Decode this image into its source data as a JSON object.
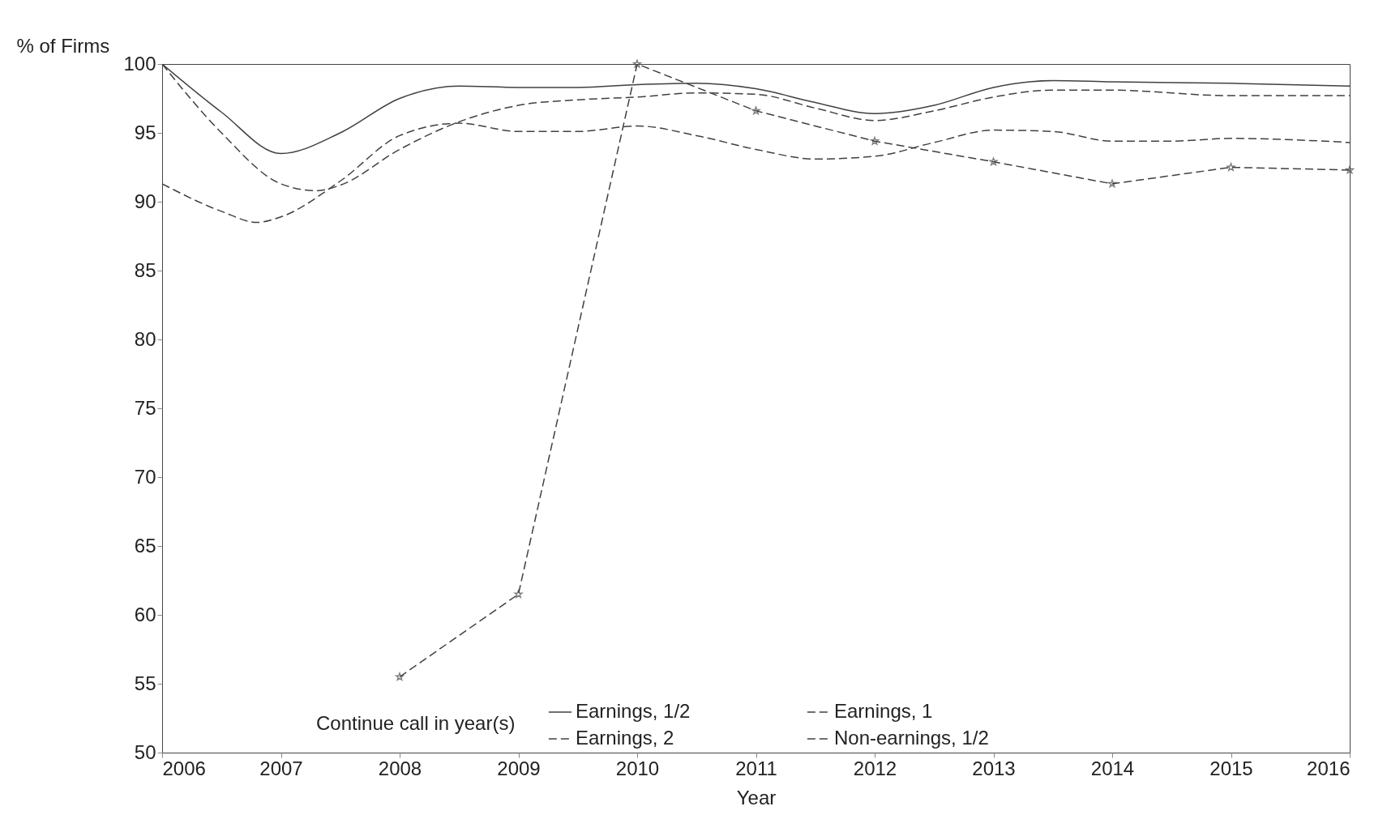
{
  "chart_data": {
    "type": "line",
    "xlabel": "Year",
    "ylabel": "% of Firms",
    "legend_title": "Continue call in year(s)",
    "legend": "bottom",
    "grid": false,
    "xlim": [
      2006,
      2016
    ],
    "xticks": [
      2006,
      2007,
      2008,
      2009,
      2010,
      2011,
      2012,
      2013,
      2014,
      2015,
      2016
    ],
    "ylim": [
      50,
      100
    ],
    "yticks": [
      50,
      55,
      60,
      65,
      70,
      75,
      80,
      85,
      90,
      95,
      100
    ],
    "series": [
      {
        "name": "Earnings, 1/2",
        "color": "#404040",
        "line_style": "solid",
        "marker": "none",
        "x": [
          2006,
          2006.5,
          2007,
          2007.5,
          2008,
          2008.5,
          2009,
          2009.5,
          2010,
          2010.5,
          2011,
          2011.5,
          2012,
          2012.5,
          2013,
          2013.5,
          2014,
          2015,
          2016
        ],
        "values": [
          100,
          96.5,
          93.5,
          95,
          97.5,
          98.4,
          98.3,
          98.3,
          98.5,
          98.6,
          98.2,
          97.2,
          96.4,
          97,
          98.3,
          98.8,
          98.7,
          98.6,
          98.4
        ]
      },
      {
        "name": "Earnings, 1",
        "color": "#404040",
        "line_style": "dashed",
        "marker": "none",
        "x": [
          2006,
          2006.5,
          2007,
          2007.3,
          2007.5,
          2008,
          2008.5,
          2009,
          2009.5,
          2010,
          2010.5,
          2011,
          2011.5,
          2012,
          2012.5,
          2013,
          2013.5,
          2014,
          2015,
          2016
        ],
        "values": [
          100,
          95,
          91.3,
          90.8,
          91.2,
          93.8,
          95.8,
          97,
          97.4,
          97.6,
          97.9,
          97.8,
          96.8,
          95.9,
          96.6,
          97.6,
          98.1,
          98.1,
          97.7,
          97.7
        ]
      },
      {
        "name": "Earnings, 2",
        "color": "#404040",
        "line_style": "dashed",
        "marker": "none",
        "x": [
          2006,
          2006.5,
          2006.8,
          2007,
          2007.5,
          2008,
          2008.5,
          2009,
          2009.5,
          2010,
          2010.5,
          2011,
          2011.5,
          2012,
          2012.5,
          2013,
          2013.5,
          2014,
          2014.5,
          2015,
          2016
        ],
        "values": [
          91.3,
          89.3,
          88.5,
          88.9,
          91.5,
          94.8,
          95.7,
          95.1,
          95.1,
          95.5,
          94.8,
          93.8,
          93.1,
          93.3,
          94.3,
          95.2,
          95.1,
          94.4,
          94.4,
          94.6,
          94.3
        ]
      },
      {
        "name": "Non-earnings, 1/2",
        "color": "#404040",
        "line_style": "dashed",
        "marker": "star",
        "x": [
          2008,
          2009,
          2010,
          2011,
          2012,
          2013,
          2014,
          2015,
          2016
        ],
        "values": [
          55.5,
          61.5,
          100,
          96.6,
          94.4,
          92.9,
          91.3,
          92.5,
          92.3
        ]
      }
    ]
  }
}
